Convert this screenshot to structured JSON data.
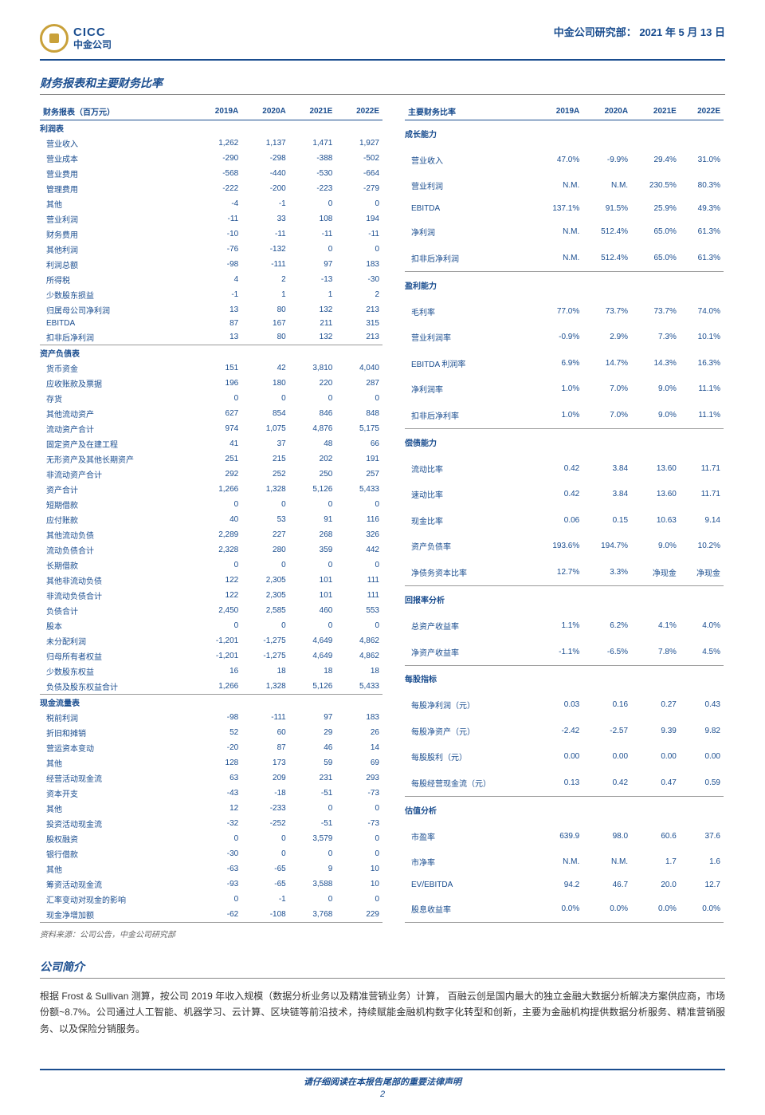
{
  "header": {
    "logo_en": "CICC",
    "logo_cn": "中金公司",
    "dept": "中金公司研究部：",
    "date": "2021 年 5 月 13 日"
  },
  "section_title": "财务报表和主要财务比率",
  "left_table": {
    "header": [
      "财务报表（百万元）",
      "2019A",
      "2020A",
      "2021E",
      "2022E"
    ],
    "sections": [
      {
        "title": "利润表",
        "rows": [
          [
            "营业收入",
            "1,262",
            "1,137",
            "1,471",
            "1,927"
          ],
          [
            "营业成本",
            "-290",
            "-298",
            "-388",
            "-502"
          ],
          [
            "营业费用",
            "-568",
            "-440",
            "-530",
            "-664"
          ],
          [
            "管理费用",
            "-222",
            "-200",
            "-223",
            "-279"
          ],
          [
            "其他",
            "-4",
            "-1",
            "0",
            "0"
          ],
          [
            "营业利润",
            "-11",
            "33",
            "108",
            "194"
          ],
          [
            "财务费用",
            "-10",
            "-11",
            "-11",
            "-11"
          ],
          [
            "其他利润",
            "-76",
            "-132",
            "0",
            "0"
          ],
          [
            "利润总额",
            "-98",
            "-111",
            "97",
            "183"
          ],
          [
            "所得税",
            "4",
            "2",
            "-13",
            "-30"
          ],
          [
            "少数股东损益",
            "-1",
            "1",
            "1",
            "2"
          ],
          [
            "归属母公司净利润",
            "13",
            "80",
            "132",
            "213"
          ],
          [
            "EBITDA",
            "87",
            "167",
            "211",
            "315"
          ],
          [
            "扣非后净利润",
            "13",
            "80",
            "132",
            "213"
          ]
        ]
      },
      {
        "title": "资产负债表",
        "rows": [
          [
            "货币资金",
            "151",
            "42",
            "3,810",
            "4,040"
          ],
          [
            "应收账款及票据",
            "196",
            "180",
            "220",
            "287"
          ],
          [
            "存货",
            "0",
            "0",
            "0",
            "0"
          ],
          [
            "其他流动资产",
            "627",
            "854",
            "846",
            "848"
          ],
          [
            "流动资产合计",
            "974",
            "1,075",
            "4,876",
            "5,175"
          ],
          [
            "固定资产及在建工程",
            "41",
            "37",
            "48",
            "66"
          ],
          [
            "无形资产及其他长期资产",
            "251",
            "215",
            "202",
            "191"
          ],
          [
            "非流动资产合计",
            "292",
            "252",
            "250",
            "257"
          ],
          [
            "资产合计",
            "1,266",
            "1,328",
            "5,126",
            "5,433"
          ],
          [
            "短期借款",
            "0",
            "0",
            "0",
            "0"
          ],
          [
            "应付账款",
            "40",
            "53",
            "91",
            "116"
          ],
          [
            "其他流动负债",
            "2,289",
            "227",
            "268",
            "326"
          ],
          [
            "流动负债合计",
            "2,328",
            "280",
            "359",
            "442"
          ],
          [
            "长期借款",
            "0",
            "0",
            "0",
            "0"
          ],
          [
            "其他非流动负债",
            "122",
            "2,305",
            "101",
            "111"
          ],
          [
            "非流动负债合计",
            "122",
            "2,305",
            "101",
            "111"
          ],
          [
            "负债合计",
            "2,450",
            "2,585",
            "460",
            "553"
          ],
          [
            "股本",
            "0",
            "0",
            "0",
            "0"
          ],
          [
            "未分配利润",
            "-1,201",
            "-1,275",
            "4,649",
            "4,862"
          ],
          [
            "归母所有者权益",
            "-1,201",
            "-1,275",
            "4,649",
            "4,862"
          ],
          [
            "少数股东权益",
            "16",
            "18",
            "18",
            "18"
          ],
          [
            "负债及股东权益合计",
            "1,266",
            "1,328",
            "5,126",
            "5,433"
          ]
        ]
      },
      {
        "title": "现金流量表",
        "rows": [
          [
            "税前利润",
            "-98",
            "-111",
            "97",
            "183"
          ],
          [
            "折旧和摊销",
            "52",
            "60",
            "29",
            "26"
          ],
          [
            "营运资本变动",
            "-20",
            "87",
            "46",
            "14"
          ],
          [
            "其他",
            "128",
            "173",
            "59",
            "69"
          ],
          [
            "经营活动现金流",
            "63",
            "209",
            "231",
            "293"
          ],
          [
            "资本开支",
            "-43",
            "-18",
            "-51",
            "-73"
          ],
          [
            "其他",
            "12",
            "-233",
            "0",
            "0"
          ],
          [
            "投资活动现金流",
            "-32",
            "-252",
            "-51",
            "-73"
          ],
          [
            "股权融资",
            "0",
            "0",
            "3,579",
            "0"
          ],
          [
            "银行借款",
            "-30",
            "0",
            "0",
            "0"
          ],
          [
            "其他",
            "-63",
            "-65",
            "9",
            "10"
          ],
          [
            "筹资活动现金流",
            "-93",
            "-65",
            "3,588",
            "10"
          ],
          [
            "汇率变动对现金的影响",
            "0",
            "-1",
            "0",
            "0"
          ],
          [
            "现金净增加额",
            "-62",
            "-108",
            "3,768",
            "229"
          ]
        ]
      }
    ]
  },
  "right_table": {
    "header": [
      "主要财务比率",
      "2019A",
      "2020A",
      "2021E",
      "2022E"
    ],
    "sections": [
      {
        "title": "成长能力",
        "rows": [
          [
            "营业收入",
            "47.0%",
            "-9.9%",
            "29.4%",
            "31.0%"
          ],
          [
            "营业利润",
            "N.M.",
            "N.M.",
            "230.5%",
            "80.3%"
          ],
          [
            "EBITDA",
            "137.1%",
            "91.5%",
            "25.9%",
            "49.3%"
          ],
          [
            "净利润",
            "N.M.",
            "512.4%",
            "65.0%",
            "61.3%"
          ],
          [
            "扣非后净利润",
            "N.M.",
            "512.4%",
            "65.0%",
            "61.3%"
          ]
        ]
      },
      {
        "title": "盈利能力",
        "rows": [
          [
            "毛利率",
            "77.0%",
            "73.7%",
            "73.7%",
            "74.0%"
          ],
          [
            "营业利润率",
            "-0.9%",
            "2.9%",
            "7.3%",
            "10.1%"
          ],
          [
            "EBITDA 利润率",
            "6.9%",
            "14.7%",
            "14.3%",
            "16.3%"
          ],
          [
            "净利润率",
            "1.0%",
            "7.0%",
            "9.0%",
            "11.1%"
          ],
          [
            "扣非后净利率",
            "1.0%",
            "7.0%",
            "9.0%",
            "11.1%"
          ]
        ]
      },
      {
        "title": "偿债能力",
        "rows": [
          [
            "流动比率",
            "0.42",
            "3.84",
            "13.60",
            "11.71"
          ],
          [
            "速动比率",
            "0.42",
            "3.84",
            "13.60",
            "11.71"
          ],
          [
            "现金比率",
            "0.06",
            "0.15",
            "10.63",
            "9.14"
          ],
          [
            "资产负债率",
            "193.6%",
            "194.7%",
            "9.0%",
            "10.2%"
          ],
          [
            "净债务资本比率",
            "12.7%",
            "3.3%",
            "净现金",
            "净现金"
          ]
        ]
      },
      {
        "title": "回报率分析",
        "rows": [
          [
            "总资产收益率",
            "1.1%",
            "6.2%",
            "4.1%",
            "4.0%"
          ],
          [
            "净资产收益率",
            "-1.1%",
            "-6.5%",
            "7.8%",
            "4.5%"
          ]
        ]
      },
      {
        "title": "每股指标",
        "rows": [
          [
            "每股净利润（元）",
            "0.03",
            "0.16",
            "0.27",
            "0.43"
          ],
          [
            "每股净资产（元）",
            "-2.42",
            "-2.57",
            "9.39",
            "9.82"
          ],
          [
            "每股股利（元）",
            "0.00",
            "0.00",
            "0.00",
            "0.00"
          ],
          [
            "每股经营现金流（元）",
            "0.13",
            "0.42",
            "0.47",
            "0.59"
          ]
        ]
      },
      {
        "title": "估值分析",
        "rows": [
          [
            "市盈率",
            "639.9",
            "98.0",
            "60.6",
            "37.6"
          ],
          [
            "市净率",
            "N.M.",
            "N.M.",
            "1.7",
            "1.6"
          ],
          [
            "EV/EBITDA",
            "94.2",
            "46.7",
            "20.0",
            "12.7"
          ],
          [
            "股息收益率",
            "0.0%",
            "0.0%",
            "0.0%",
            "0.0%"
          ]
        ]
      }
    ]
  },
  "source": "资料来源：公司公告，中金公司研究部",
  "intro_title": "公司简介",
  "intro_body": "根据 Frost & Sullivan 测算，按公司 2019 年收入规模（数据分析业务以及精准营销业务）计算， 百融云创是国内最大的独立金融大数据分析解决方案供应商，市场份额~8.7%。公司通过人工智能、机器学习、云计算、区块链等前沿技术，持续赋能金融机构数字化转型和创新，主要为金融机构提供数据分析服务、精准营销服务、以及保险分销服务。",
  "footer": {
    "legal": "请仔细阅读在本报告尾部的重要法律声明",
    "page": "2"
  }
}
